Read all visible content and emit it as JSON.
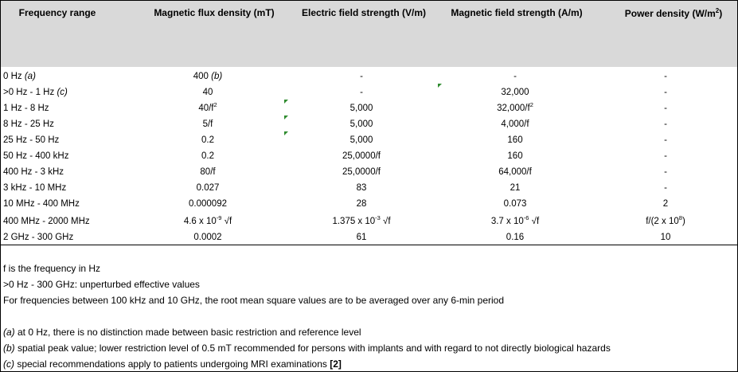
{
  "headers": [
    "Frequency range",
    "Magnetic flux density (mT)",
    "Electric field strength (V/m)",
    "Magnetic field strength (A/m)",
    "Power density (W/m",
    ")"
  ],
  "header_sup": "2",
  "rows": [
    {
      "freq": "0 Hz ",
      "freq_note": "(a)",
      "b": "400 ",
      "b_note": "(b)",
      "e": "-",
      "h": "-",
      "s": "-"
    },
    {
      "freq": ">0 Hz - 1 Hz ",
      "freq_note": "(c)",
      "b": "40",
      "b_note": "",
      "e": "-",
      "h": "32,000",
      "s": "-"
    },
    {
      "freq": "1 Hz - 8 Hz",
      "b": "40/f",
      "b_sup": "2",
      "e": "5,000",
      "h": "32,000/f",
      "h_sup": "2",
      "s": "-"
    },
    {
      "freq": "8 Hz - 25 Hz",
      "b": "5/f",
      "e": "5,000",
      "h": "4,000/f",
      "s": "-"
    },
    {
      "freq": "25 Hz - 50 Hz",
      "b": "0.2",
      "e": "5,000",
      "h": "160",
      "s": "-"
    },
    {
      "freq": "50 Hz - 400 kHz",
      "b": "0.2",
      "e": "25,0000/f",
      "h": "160",
      "s": "-"
    },
    {
      "freq": "400 Hz - 3 kHz",
      "b": "80/f",
      "e": "25,0000/f",
      "h": "64,000/f",
      "s": "-"
    },
    {
      "freq": "3 kHz - 10 MHz",
      "b": "0.027",
      "e": "83",
      "h": "21",
      "s": "-"
    },
    {
      "freq": "10 MHz - 400 MHz",
      "b": "0.000092",
      "e": "28",
      "h": "0.073",
      "s": "2"
    },
    {
      "freq": "400 MHz - 2000 MHz",
      "b_pre": "4.6 x 10",
      "b_exp": "-9",
      "b_post": " √f",
      "e_pre": "1.375 x 10",
      "e_exp": "-3",
      "e_post": " √f",
      "h_pre": "3.7 x 10",
      "h_exp": "-6",
      "h_post": " √f",
      "s_pre": "f/(2 x 10",
      "s_exp": "8",
      "s_post": ")"
    },
    {
      "freq": "2 GHz - 300 GHz",
      "b": "0.0002",
      "e": "61",
      "h": "0.16",
      "s": "10"
    }
  ],
  "notes": [
    {
      "text": "f is the frequency in Hz"
    },
    {
      "text": ">0 Hz - 300 GHz: unperturbed effective values"
    },
    {
      "text": "For frequencies between 100 kHz and 10 GHz, the root mean square values are to be averaged over any 6-min period"
    },
    {
      "label": "(a)",
      "text": " at 0 Hz, there is no distinction made between basic restriction and reference level"
    },
    {
      "label": "(b)",
      "text": " spatial peak value; lower restriction level of 0.5 mT recommended for persons with implants and with regard to not directly biological hazards"
    },
    {
      "label": "(c)",
      "text": " special recommendations apply to patients undergoing MRI examinations ",
      "ref": "[2]"
    }
  ]
}
